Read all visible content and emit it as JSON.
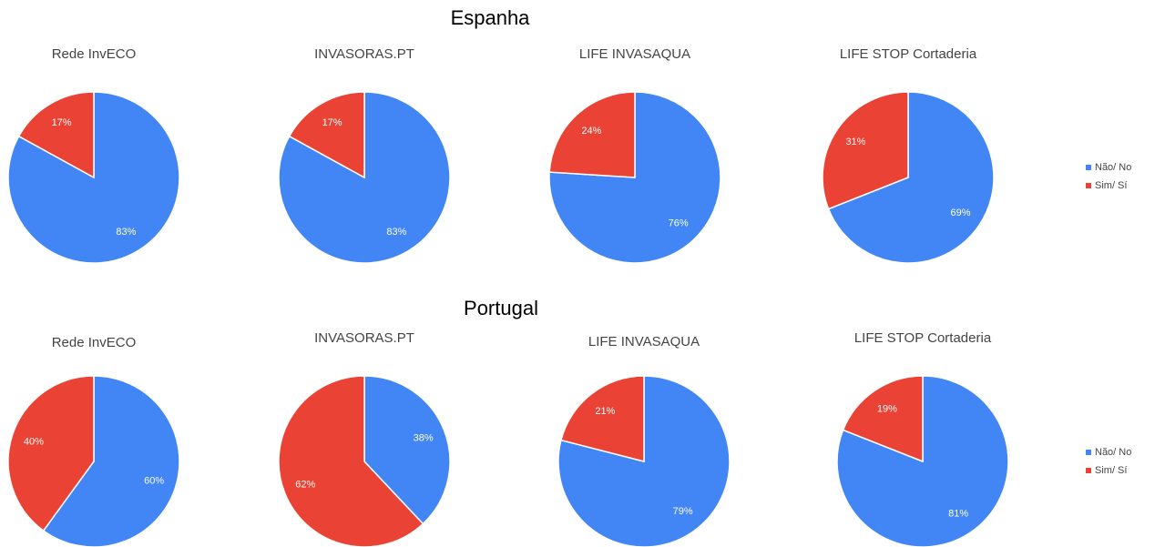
{
  "groups": [
    "Espanha",
    "Portugal"
  ],
  "chart_data": [
    {
      "type": "pie",
      "title": "Rede InvECO",
      "categories": [
        "Não/ No",
        "Sim/ Sí"
      ],
      "values": [
        83,
        17
      ],
      "value_labels": [
        "83%",
        "17%"
      ],
      "colors": [
        "#4285f4",
        "#ea4335"
      ]
    },
    {
      "type": "pie",
      "title": "INVASORAS.PT",
      "categories": [
        "Não/ No",
        "Sim/ Sí"
      ],
      "values": [
        83,
        17
      ],
      "value_labels": [
        "83%",
        "17%"
      ],
      "colors": [
        "#4285f4",
        "#ea4335"
      ]
    },
    {
      "type": "pie",
      "title": "LIFE INVASAQUA",
      "categories": [
        "Não/ No",
        "Sim/ Sí"
      ],
      "values": [
        76,
        24
      ],
      "value_labels": [
        "76%",
        "24%"
      ],
      "colors": [
        "#4285f4",
        "#ea4335"
      ]
    },
    {
      "type": "pie",
      "title": "LIFE STOP Cortaderia",
      "categories": [
        "Não/ No",
        "Sim/ Sí"
      ],
      "values": [
        69,
        31
      ],
      "value_labels": [
        "69%",
        "31%"
      ],
      "colors": [
        "#4285f4",
        "#ea4335"
      ]
    },
    {
      "type": "pie",
      "title": "Rede InvECO",
      "categories": [
        "Não/ No",
        "Sim/ Sí"
      ],
      "values": [
        60,
        40
      ],
      "value_labels": [
        "60%",
        "40%"
      ],
      "colors": [
        "#4285f4",
        "#ea4335"
      ]
    },
    {
      "type": "pie",
      "title": "INVASORAS.PT",
      "categories": [
        "Não/ No",
        "Sim/ Sí"
      ],
      "values": [
        38,
        62
      ],
      "value_labels": [
        "38%",
        "62%"
      ],
      "colors": [
        "#4285f4",
        "#ea4335"
      ]
    },
    {
      "type": "pie",
      "title": "LIFE INVASAQUA",
      "categories": [
        "Não/ No",
        "Sim/ Sí"
      ],
      "values": [
        79,
        21
      ],
      "value_labels": [
        "79%",
        "21%"
      ],
      "colors": [
        "#4285f4",
        "#ea4335"
      ]
    },
    {
      "type": "pie",
      "title": "LIFE STOP Cortaderia",
      "categories": [
        "Não/ No",
        "Sim/ Sí"
      ],
      "values": [
        81,
        19
      ],
      "value_labels": [
        "81%",
        "19%"
      ],
      "colors": [
        "#4285f4",
        "#ea4335"
      ]
    }
  ]
}
